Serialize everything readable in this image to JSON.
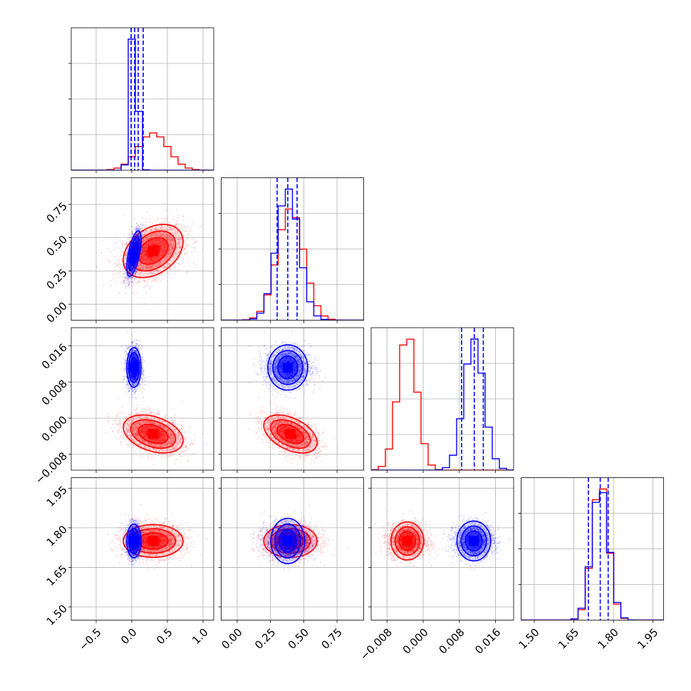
{
  "chart_data": {
    "type": "corner-plot",
    "grid": true,
    "colors": {
      "series_a": "#0000ff",
      "series_b": "#ff0000"
    },
    "parameters": [
      {
        "range": [
          -0.85,
          1.15
        ],
        "ticks": [
          -0.5,
          0.0,
          0.5,
          1.0
        ],
        "tick_labels": [
          "−0.5",
          "0.0",
          "0.5",
          "1.0"
        ]
      },
      {
        "range": [
          -0.12,
          0.95
        ],
        "ticks": [
          0.0,
          0.25,
          0.5,
          0.75
        ],
        "tick_labels": [
          "0.00",
          "0.25",
          "0.50",
          "0.75"
        ]
      },
      {
        "range": [
          -0.0115,
          0.02
        ],
        "ticks": [
          -0.008,
          0.0,
          0.008,
          0.016
        ],
        "tick_labels": [
          "−0.008",
          "0.000",
          "0.008",
          "0.016"
        ]
      },
      {
        "range": [
          1.45,
          1.99
        ],
        "ticks": [
          1.5,
          1.65,
          1.8,
          1.95
        ],
        "tick_labels": [
          "1.50",
          "1.65",
          "1.80",
          "1.95"
        ]
      }
    ],
    "series": [
      {
        "color": "#0000ff",
        "mean": [
          0.03,
          0.38,
          0.0112,
          1.75
        ],
        "sd": [
          0.05,
          0.085,
          0.0022,
          0.032
        ],
        "corr": [
          [
            0,
            1,
            0.6
          ]
        ],
        "quantiles": [
          [
            -0.01,
            0.04,
            0.09,
            0.16
          ],
          [
            0.3,
            0.38,
            0.45
          ],
          [
            0.0085,
            0.0113,
            0.0133
          ],
          [
            1.705,
            1.75,
            1.78
          ]
        ]
      },
      {
        "color": "#ff0000",
        "mean": [
          0.3,
          0.4,
          -0.0035,
          1.75
        ],
        "sd": [
          0.21,
          0.1,
          0.0021,
          0.031
        ],
        "corr": [
          [
            0,
            1,
            0.35
          ],
          [
            0,
            2,
            -0.35
          ],
          [
            1,
            2,
            -0.45
          ]
        ],
        "quantiles": []
      }
    ],
    "contour_levels": [
      0.5,
      1.0,
      1.5,
      2.0
    ],
    "samples_per_series": 2200
  }
}
